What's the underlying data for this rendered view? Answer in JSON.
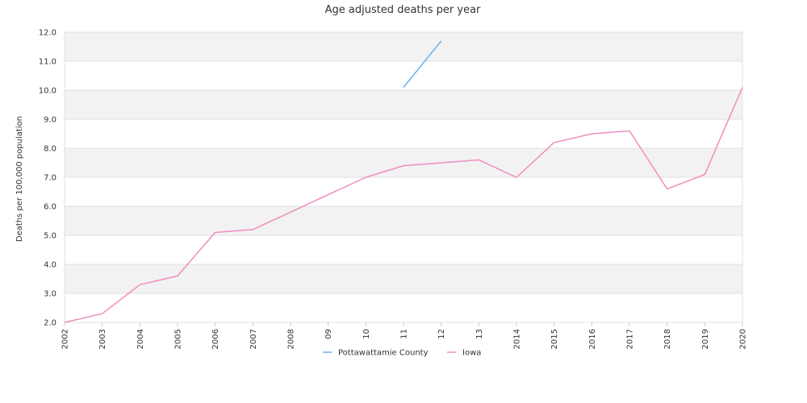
{
  "chart_data": {
    "type": "line",
    "title": "Age adjusted deaths per year",
    "ylabel": "Deaths per 100,000 population",
    "xlabel": "",
    "categories": [
      "2002",
      "2003",
      "2004",
      "2005",
      "2006",
      "2007",
      "2008",
      "09",
      "10",
      "11",
      "12",
      "13",
      "2014",
      "2015",
      "2016",
      "2017",
      "2018",
      "2019",
      "2020"
    ],
    "ylim": [
      2.0,
      12.0
    ],
    "ystep": 1.0,
    "yticks": [
      "2.0",
      "3.0",
      "4.0",
      "5.0",
      "6.0",
      "7.0",
      "8.0",
      "9.0",
      "10.0",
      "11.0",
      "12.0"
    ],
    "grid": true,
    "legend_position": "bottom-center",
    "series": [
      {
        "name": "Pottawattamie County",
        "color": "#6aaee6",
        "values": [
          null,
          null,
          null,
          null,
          null,
          null,
          null,
          null,
          null,
          10.1,
          11.7,
          null,
          null,
          null,
          null,
          null,
          null,
          null,
          null
        ]
      },
      {
        "name": "Iowa",
        "color": "#f08cbf",
        "values": [
          2.0,
          2.3,
          3.3,
          3.6,
          5.1,
          5.2,
          5.8,
          6.4,
          7.0,
          7.4,
          7.5,
          7.6,
          7.0,
          8.2,
          8.5,
          8.6,
          6.6,
          7.1,
          10.1
        ]
      }
    ]
  }
}
